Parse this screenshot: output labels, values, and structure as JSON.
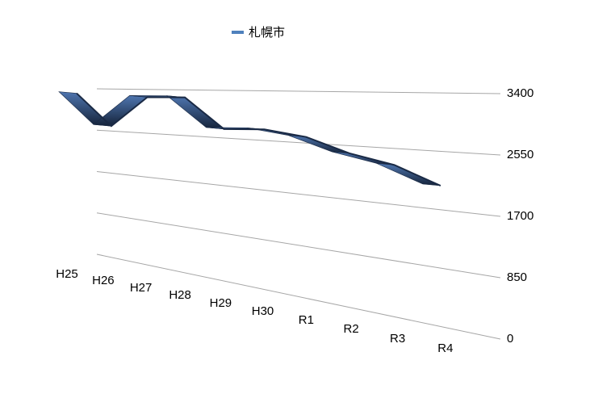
{
  "chart_data": {
    "type": "line",
    "categories": [
      "H25",
      "H26",
      "H27",
      "H28",
      "H29",
      "H30",
      "R1",
      "R2",
      "R3",
      "R4"
    ],
    "series": [
      {
        "name": "札幌市",
        "color": "#4f81bd",
        "values": [
          3300,
          2650,
          3250,
          3260,
          2710,
          2740,
          2650,
          2430,
          2300,
          2050
        ]
      }
    ],
    "ylim": [
      0,
      3400
    ],
    "yticks": [
      0,
      850,
      1700,
      2550,
      3400
    ],
    "grid": true,
    "legend": "top"
  }
}
